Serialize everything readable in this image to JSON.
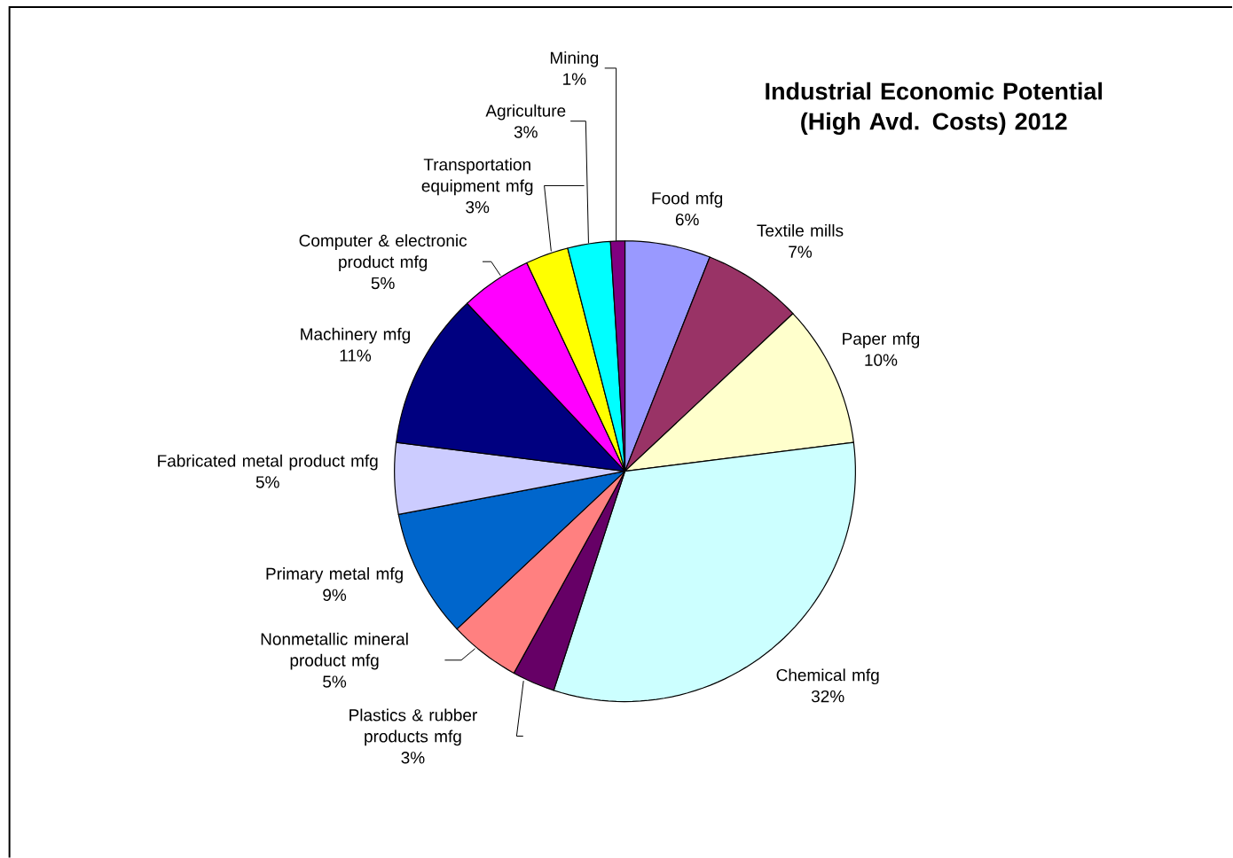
{
  "chart_data": {
    "type": "pie",
    "title": "Industrial Economic Potential (High Avd. Costs) 2012",
    "categories": [
      "Food mfg",
      "Textile mills",
      "Paper mfg",
      "Chemical mfg",
      "Plastics & rubber products mfg",
      "Nonmetallic mineral product mfg",
      "Primary metal mfg",
      "Fabricated metal product mfg",
      "Machinery mfg",
      "Computer & electronic product mfg",
      "Transportation equipment mfg",
      "Agriculture",
      "Mining"
    ],
    "values": [
      6,
      7,
      10,
      32,
      3,
      5,
      9,
      5,
      11,
      5,
      3,
      3,
      1
    ],
    "value_labels": [
      "6%",
      "7%",
      "10%",
      "32%",
      "3%",
      "5%",
      "9%",
      "5%",
      "11%",
      "5%",
      "3%",
      "3%",
      "1%"
    ],
    "colors": [
      "#9999ff",
      "#993366",
      "#ffffcc",
      "#ccffff",
      "#660066",
      "#ff8080",
      "#0066cc",
      "#ccccff",
      "#000080",
      "#ff00ff",
      "#ffff00",
      "#00ffff",
      "#800080"
    ]
  }
}
